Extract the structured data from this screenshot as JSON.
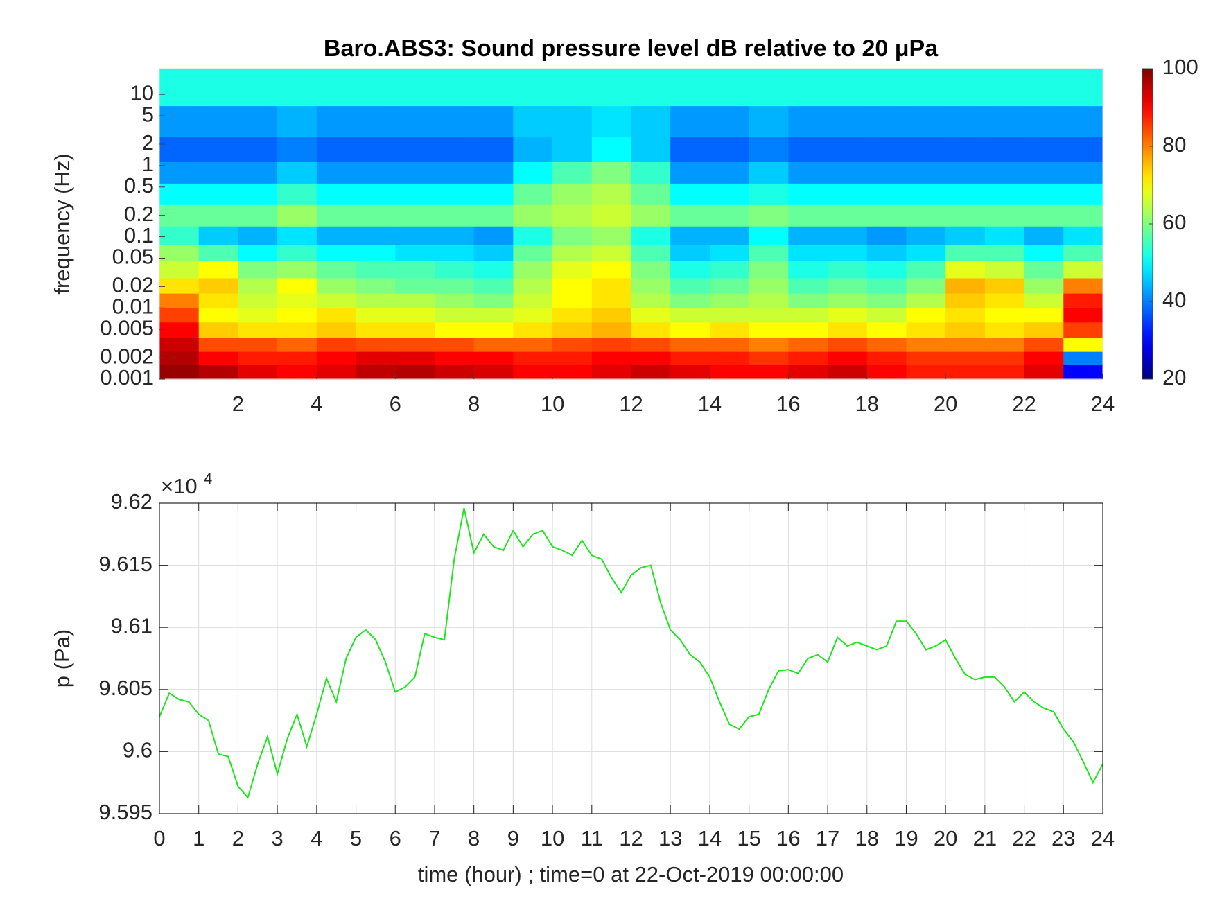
{
  "chart_data": [
    {
      "type": "heatmap",
      "title": "Baro.ABS3: Sound pressure level dB relative to 20 μPa",
      "ylabel": "frequency (Hz)",
      "x": [
        0.5,
        1.5,
        2.5,
        3.5,
        4.5,
        5.5,
        6.5,
        7.5,
        8.5,
        9.5,
        10.5,
        11.5,
        12.5,
        13.5,
        14.5,
        15.5,
        16.5,
        17.5,
        18.5,
        19.5,
        20.5,
        21.5,
        22.5,
        23.5
      ],
      "y": [
        0.0013,
        0.002,
        0.003,
        0.005,
        0.008,
        0.013,
        0.02,
        0.035,
        0.06,
        0.1,
        0.2,
        0.4,
        0.8,
        1.6,
        4,
        12
      ],
      "z": [
        [
          98,
          96,
          92,
          90,
          92,
          95,
          96,
          94,
          93,
          90,
          90,
          92,
          94,
          92,
          90,
          90,
          92,
          94,
          90,
          88,
          88,
          88,
          92,
          30
        ],
        [
          96,
          90,
          88,
          88,
          90,
          92,
          92,
          90,
          90,
          88,
          88,
          90,
          90,
          88,
          88,
          86,
          88,
          90,
          88,
          86,
          86,
          86,
          90,
          40
        ],
        [
          94,
          84,
          84,
          82,
          85,
          84,
          84,
          84,
          82,
          82,
          84,
          85,
          84,
          82,
          82,
          80,
          82,
          84,
          82,
          80,
          80,
          80,
          84,
          70
        ],
        [
          90,
          74,
          72,
          72,
          74,
          72,
          72,
          70,
          70,
          72,
          74,
          76,
          72,
          70,
          72,
          70,
          70,
          72,
          70,
          72,
          74,
          72,
          74,
          85
        ],
        [
          85,
          70,
          68,
          70,
          72,
          68,
          68,
          66,
          66,
          68,
          72,
          74,
          68,
          66,
          66,
          66,
          66,
          68,
          66,
          70,
          72,
          70,
          70,
          90
        ],
        [
          80,
          72,
          66,
          68,
          66,
          64,
          64,
          62,
          60,
          66,
          70,
          72,
          64,
          60,
          62,
          64,
          60,
          62,
          60,
          64,
          74,
          72,
          66,
          88
        ],
        [
          72,
          74,
          64,
          70,
          62,
          60,
          58,
          58,
          56,
          64,
          70,
          72,
          62,
          56,
          58,
          62,
          56,
          58,
          56,
          60,
          76,
          74,
          62,
          80
        ],
        [
          66,
          70,
          60,
          62,
          58,
          56,
          56,
          54,
          52,
          62,
          68,
          70,
          60,
          52,
          54,
          60,
          52,
          54,
          52,
          56,
          68,
          66,
          58,
          66
        ],
        [
          62,
          56,
          50,
          54,
          50,
          50,
          48,
          48,
          46,
          58,
          64,
          66,
          56,
          46,
          48,
          56,
          48,
          48,
          46,
          48,
          56,
          56,
          50,
          56
        ],
        [
          54,
          46,
          44,
          48,
          44,
          44,
          44,
          44,
          42,
          52,
          60,
          62,
          52,
          44,
          44,
          50,
          44,
          44,
          42,
          44,
          46,
          48,
          44,
          48
        ],
        [
          58,
          58,
          58,
          62,
          58,
          58,
          58,
          58,
          58,
          62,
          64,
          66,
          62,
          58,
          58,
          60,
          58,
          58,
          58,
          58,
          58,
          58,
          58,
          58
        ],
        [
          50,
          50,
          50,
          54,
          50,
          50,
          50,
          50,
          50,
          58,
          62,
          64,
          58,
          50,
          50,
          52,
          50,
          50,
          50,
          50,
          50,
          50,
          50,
          50
        ],
        [
          42,
          42,
          42,
          46,
          42,
          42,
          42,
          42,
          42,
          50,
          56,
          60,
          54,
          42,
          42,
          46,
          42,
          42,
          42,
          42,
          42,
          42,
          42,
          42
        ],
        [
          38,
          38,
          38,
          40,
          38,
          38,
          38,
          38,
          38,
          44,
          46,
          50,
          46,
          38,
          38,
          40,
          38,
          38,
          38,
          38,
          38,
          38,
          38,
          38
        ],
        [
          42,
          42,
          42,
          44,
          42,
          42,
          42,
          42,
          42,
          46,
          46,
          48,
          46,
          42,
          42,
          44,
          42,
          42,
          42,
          42,
          42,
          42,
          42,
          42
        ],
        [
          52,
          52,
          52,
          52,
          52,
          52,
          52,
          52,
          52,
          52,
          52,
          52,
          52,
          52,
          52,
          52,
          52,
          52,
          52,
          52,
          52,
          52,
          52,
          52
        ]
      ],
      "xlim": [
        0,
        24
      ],
      "xticks": [
        2,
        4,
        6,
        8,
        10,
        12,
        14,
        16,
        18,
        20,
        22,
        24
      ],
      "ylim": [
        0.001,
        23
      ],
      "yscale": "log",
      "yticks": [
        0.001,
        0.002,
        0.005,
        0.01,
        0.02,
        0.05,
        0.1,
        0.2,
        0.5,
        1,
        2,
        5,
        10
      ],
      "colormap": "jet",
      "clim": [
        20,
        100
      ],
      "cticks": [
        20,
        40,
        60,
        80,
        100
      ]
    },
    {
      "type": "line",
      "xlabel": "time (hour) ; time=0 at 22-Oct-2019 00:00:00",
      "ylabel": "p (Pa)",
      "y_multiplier": "×10",
      "y_exponent": 4,
      "x": [
        0,
        0.25,
        0.5,
        0.75,
        1,
        1.25,
        1.5,
        1.75,
        2,
        2.25,
        2.5,
        2.75,
        3,
        3.25,
        3.5,
        3.75,
        4,
        4.25,
        4.5,
        4.75,
        5,
        5.25,
        5.5,
        5.75,
        6,
        6.25,
        6.5,
        6.75,
        7,
        7.25,
        7.5,
        7.75,
        8,
        8.25,
        8.5,
        8.75,
        9,
        9.25,
        9.5,
        9.75,
        10,
        10.25,
        10.5,
        10.75,
        11,
        11.25,
        11.5,
        11.75,
        12,
        12.25,
        12.5,
        12.75,
        13,
        13.25,
        13.5,
        13.75,
        14,
        14.25,
        14.5,
        14.75,
        15,
        15.25,
        15.5,
        15.75,
        16,
        16.25,
        16.5,
        16.75,
        17,
        17.25,
        17.5,
        17.75,
        18,
        18.25,
        18.5,
        18.75,
        19,
        19.25,
        19.5,
        19.75,
        20,
        20.25,
        20.5,
        20.75,
        21,
        21.25,
        21.5,
        21.75,
        22,
        22.25,
        22.5,
        22.75,
        23,
        23.25,
        23.5,
        23.75,
        24
      ],
      "series": [
        {
          "color": "#1ee51e",
          "values": [
            96028,
            96047,
            96042,
            96040,
            96030,
            96025,
            95998,
            95996,
            95972,
            95963,
            95990,
            96012,
            95982,
            96010,
            96030,
            96004,
            96030,
            96059,
            96040,
            96075,
            96092,
            96098,
            96090,
            96072,
            96048,
            96052,
            96060,
            96095,
            96092,
            96090,
            96155,
            96196,
            96160,
            96175,
            96165,
            96162,
            96178,
            96165,
            96175,
            96178,
            96165,
            96162,
            96158,
            96170,
            96158,
            96155,
            96140,
            96128,
            96142,
            96148,
            96150,
            96120,
            96098,
            96090,
            96078,
            96072,
            96060,
            96040,
            96022,
            96018,
            96028,
            96030,
            96050,
            96065,
            96066,
            96063,
            96075,
            96078,
            96072,
            96092,
            96085,
            96088,
            96085,
            96082,
            96085,
            96105,
            96105,
            96095,
            96082,
            96085,
            96090,
            96075,
            96062,
            96058,
            96060,
            96060,
            96052,
            96040,
            96048,
            96040,
            96035,
            96032,
            96018,
            96008,
            95992,
            95975,
            95990
          ]
        }
      ],
      "xlim": [
        0,
        24
      ],
      "xticks": [
        0,
        1,
        2,
        3,
        4,
        5,
        6,
        7,
        8,
        9,
        10,
        11,
        12,
        13,
        14,
        15,
        16,
        17,
        18,
        19,
        20,
        21,
        22,
        23,
        24
      ],
      "ylim": [
        95950,
        96200
      ],
      "yticks": [
        {
          "value": 95950,
          "label": "9.595"
        },
        {
          "value": 96000,
          "label": "9.6"
        },
        {
          "value": 96050,
          "label": "9.605"
        },
        {
          "value": 96100,
          "label": "9.61"
        },
        {
          "value": 96150,
          "label": "9.615"
        },
        {
          "value": 96200,
          "label": "9.62"
        }
      ],
      "grid": true
    }
  ]
}
